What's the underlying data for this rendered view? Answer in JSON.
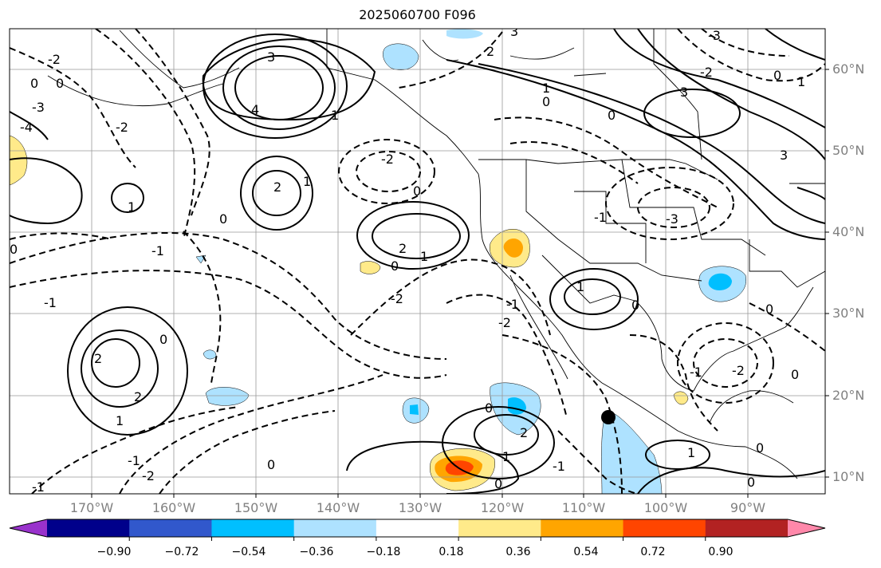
{
  "title": "2025060700 F096",
  "map": {
    "lat_labels": [
      "60°N",
      "50°N",
      "40°N",
      "30°N",
      "20°N",
      "10°N"
    ],
    "lon_labels": [
      "170°W",
      "160°W",
      "150°W",
      "140°W",
      "130°W",
      "120°W",
      "110°W",
      "100°W",
      "90°W"
    ],
    "contour_labels": [
      "-3",
      "-2",
      "-1",
      "0",
      "1",
      "2",
      "3",
      "4"
    ],
    "grid": true,
    "marker": {
      "lat": 17.3,
      "lon": -106.4,
      "shape": "filled-circle",
      "color": "#000000"
    }
  },
  "colorbar": {
    "tick_labels": [
      "−0.90",
      "−0.72",
      "−0.54",
      "−0.36",
      "−0.18",
      "0.18",
      "0.36",
      "0.54",
      "0.72",
      "0.90"
    ],
    "colors": [
      "#9932cc",
      "#00008b",
      "#3158cc",
      "#00bfff",
      "#aee2ff",
      "#ffffff",
      "#ffea8a",
      "#ffa500",
      "#ff4500",
      "#b22222",
      "#ff88aa"
    ],
    "extend": "both"
  },
  "shaded_colors": {
    "light_blue": "#aee2ff",
    "blue": "#00bfff",
    "yellow": "#ffea8a",
    "orange": "#ffa500",
    "red": "#ff4500"
  }
}
